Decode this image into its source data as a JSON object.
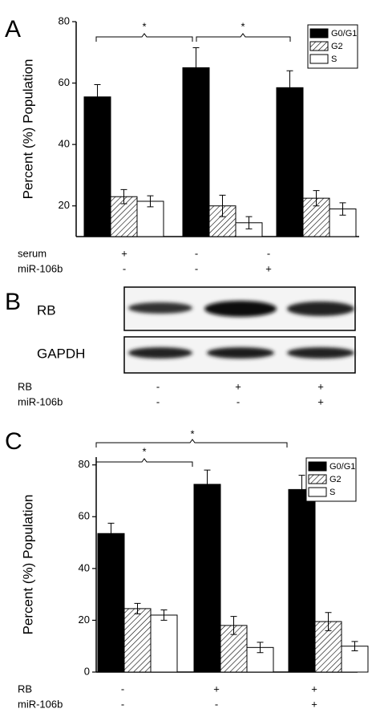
{
  "panel_labels": [
    "A",
    "B",
    "C"
  ],
  "chart_data": [
    {
      "type": "bar",
      "y_label": "Percent (%) Population",
      "series": [
        {
          "name": "G0/G1",
          "color": "#000000",
          "values": [
            55.5,
            65,
            58.5
          ],
          "errors": [
            4,
            6.5,
            5.5
          ]
        },
        {
          "name": "G2",
          "color": "#ffffff",
          "pattern": "hatch",
          "values": [
            23,
            20,
            22.5
          ],
          "errors": [
            2.3,
            3.5,
            2.5
          ]
        },
        {
          "name": "S",
          "color": "#ffffff",
          "values": [
            21.5,
            14.5,
            19
          ],
          "errors": [
            1.8,
            2,
            2
          ]
        }
      ],
      "ylim": [
        10,
        80
      ],
      "yticks": [
        20,
        40,
        60,
        80
      ],
      "legend": "upper right",
      "conditions": [
        {
          "label": "serum",
          "values": [
            "+",
            "-",
            "-"
          ]
        },
        {
          "label": "miR-106b",
          "values": [
            "-",
            "-",
            "+"
          ]
        }
      ],
      "annotations": [
        "*",
        "*"
      ]
    },
    {
      "type": "bar",
      "y_label": "Percent (%) Population",
      "series": [
        {
          "name": "G0/G1",
          "color": "#000000",
          "values": [
            53.5,
            72.5,
            70.5
          ],
          "errors": [
            4,
            5.5,
            5.5
          ]
        },
        {
          "name": "G2",
          "color": "#ffffff",
          "pattern": "hatch",
          "values": [
            24.5,
            18,
            19.5
          ],
          "errors": [
            2,
            3.5,
            3.5
          ]
        },
        {
          "name": "S",
          "color": "#ffffff",
          "values": [
            22,
            9.5,
            10
          ],
          "errors": [
            2,
            2,
            1.8
          ]
        }
      ],
      "ylim": [
        0,
        83
      ],
      "yticks": [
        0,
        20,
        40,
        60,
        80
      ],
      "legend": "upper right",
      "conditions": [
        {
          "label": "RB",
          "values": [
            "-",
            "+",
            "+"
          ]
        },
        {
          "label": "miR-106b",
          "values": [
            "-",
            "-",
            "+"
          ]
        }
      ],
      "annotations": [
        "*",
        "*"
      ]
    }
  ],
  "blot": {
    "rows": [
      "RB",
      "GAPDH"
    ],
    "conditions": [
      {
        "label": "RB",
        "values": [
          "-",
          "+",
          "+"
        ]
      },
      {
        "label": "miR-106b",
        "values": [
          "-",
          "-",
          "+"
        ]
      }
    ]
  }
}
